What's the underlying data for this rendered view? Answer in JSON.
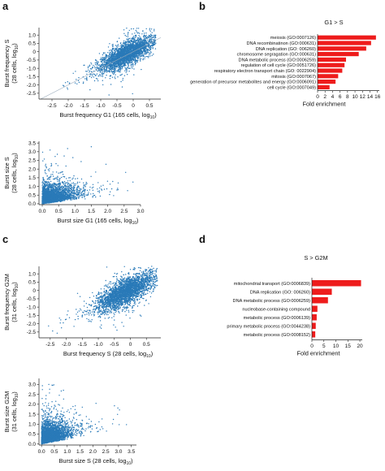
{
  "panel_labels": {
    "a": "a",
    "b": "b",
    "c": "c",
    "d": "d"
  },
  "chart_data": [
    {
      "id": "a1",
      "panel": "a",
      "type": "scatter",
      "color": "#2a7ab8",
      "title": "",
      "xlabel": "Burst frequency G1 (165 cells, log10)",
      "ylabel_line1": "Burst frequency S",
      "ylabel_line2": "(28 cells, log10)",
      "xlim": [
        -2.9,
        0.85
      ],
      "ylim": [
        -2.85,
        1.45
      ],
      "xticks": [
        "-2.5",
        "-2.0",
        "-1.5",
        "-1.0",
        "-0.5",
        "0",
        "0.5"
      ],
      "xtick_values": [
        -2.5,
        -2.0,
        -1.5,
        -1.0,
        -0.5,
        0,
        0.5
      ],
      "yticks": [
        "-2.5",
        "-2.0",
        "-1.5",
        "-1.0",
        "-0.5",
        "0",
        "0.5",
        "1.0"
      ],
      "ytick_values": [
        -2.5,
        -2.0,
        -1.5,
        -1.0,
        -0.5,
        0,
        0.5,
        1.0
      ],
      "diagonal": true,
      "points_description": "~3000 points, dense cloud along diagonal; approximate",
      "dist": {
        "kind": "corr",
        "n": 3000,
        "xmean": -0.2,
        "xsd": 0.38,
        "ymean": -0.15,
        "slope": 0.95,
        "noise": 0.32,
        "xmin": -2.6,
        "xmax": 0.7
      }
    },
    {
      "id": "a2",
      "panel": "a",
      "type": "scatter",
      "color": "#2a7ab8",
      "title": "",
      "xlabel": "Burst size G1 (165 cells, log10)",
      "ylabel_line1": "Burst size S",
      "ylabel_line2": "(28 cells, log10)",
      "xlim": [
        -0.1,
        3.0
      ],
      "ylim": [
        -0.05,
        3.6
      ],
      "xticks": [
        "0.0",
        "0.5",
        "1.0",
        "1.5",
        "2.0",
        "2.5",
        "3.0"
      ],
      "xtick_values": [
        0.0,
        0.5,
        1.0,
        1.5,
        2.0,
        2.5,
        3.0
      ],
      "yticks": [
        "0.0",
        "0.5",
        "1.0",
        "1.5",
        "2.0",
        "2.5",
        "3.0",
        "3.5"
      ],
      "ytick_values": [
        0.0,
        0.5,
        1.0,
        1.5,
        2.0,
        2.5,
        3.0,
        3.5
      ],
      "diagonal": false,
      "dist": {
        "kind": "pos",
        "n": 3000,
        "xscale": 0.45,
        "yscale": 0.42,
        "corr": 0.35,
        "xmax": 2.9,
        "ymax": 3.4
      }
    },
    {
      "id": "b",
      "panel": "b",
      "type": "bar",
      "orientation": "horizontal",
      "color": "#ee1c1c",
      "title": "G1 > S",
      "xlabel": "Fold enrichment",
      "xlim": [
        0,
        16.5
      ],
      "xticks": [
        "0",
        "2",
        "4",
        "6",
        "8",
        "10",
        "12",
        "14",
        "16"
      ],
      "xtick_values": [
        0,
        2,
        4,
        6,
        8,
        10,
        12,
        14,
        16
      ],
      "categories": [
        "meiosis (GO:0007126)",
        "DNA recombinatinon (GO:000631)",
        "DNA replication (GO: 006260)",
        "chromosome segragation (GO:000631)",
        "DNA metabolic process (GO:0006259)",
        "regulation of cell cycle (GO:0051726)",
        "respiratory electron transport chain (GO: 0022904)",
        "mitosis (GO:0007067)",
        "generation of precursor metabolites and energy (GO:0006091)",
        "cell cycle (GO:0007049)"
      ],
      "values": [
        15.6,
        14.3,
        13.0,
        11.0,
        7.6,
        7.2,
        6.6,
        5.5,
        4.8,
        3.2
      ]
    },
    {
      "id": "c1",
      "panel": "c",
      "type": "scatter",
      "color": "#2a7ab8",
      "title": "",
      "xlabel": "Burst frequency S (28 cells, log10)",
      "ylabel_line1": "Burst frequency G2M",
      "ylabel_line2": "(31 cells, log10)",
      "xlim": [
        -2.85,
        0.95
      ],
      "ylim": [
        -2.85,
        1.45
      ],
      "xticks": [
        "-2.5",
        "-2.0",
        "-1.5",
        "-1.0",
        "-0.5",
        "0",
        "0.5"
      ],
      "xtick_values": [
        -2.5,
        -2.0,
        -1.5,
        -1.0,
        -0.5,
        0,
        0.5
      ],
      "yticks": [
        "-2.5",
        "-2.0",
        "-1.5",
        "-1.0",
        "-0.5",
        "0",
        "0.5",
        "1.0"
      ],
      "ytick_values": [
        -2.5,
        -2.0,
        -1.5,
        -1.0,
        -0.5,
        0,
        0.5,
        1.0
      ],
      "diagonal": false,
      "dist": {
        "kind": "corr",
        "n": 3000,
        "xmean": -0.15,
        "xsd": 0.42,
        "ymean": -0.1,
        "slope": 0.9,
        "noise": 0.38,
        "xmin": -2.6,
        "xmax": 0.85
      }
    },
    {
      "id": "c2",
      "panel": "c",
      "type": "scatter",
      "color": "#2a7ab8",
      "title": "",
      "xlabel": "Burst size S (28 cells, log10)",
      "ylabel_line1": "Burst size G2M",
      "ylabel_line2": "(31 cells, log10)",
      "xlim": [
        -0.1,
        3.7
      ],
      "ylim": [
        -0.05,
        3.3
      ],
      "xticks": [
        "0.0",
        "0.5",
        "1.0",
        "1.5",
        "2.0",
        "2.5",
        "3.0",
        "3.5"
      ],
      "xtick_values": [
        0.0,
        0.5,
        1.0,
        1.5,
        2.0,
        2.5,
        3.0,
        3.5
      ],
      "yticks": [
        "0.0",
        "0.5",
        "1.0",
        "1.5",
        "2.0",
        "2.5",
        "3.0"
      ],
      "ytick_values": [
        0.0,
        0.5,
        1.0,
        1.5,
        2.0,
        2.5,
        3.0
      ],
      "diagonal": false,
      "dist": {
        "kind": "pos",
        "n": 3000,
        "xscale": 0.5,
        "yscale": 0.42,
        "corr": 0.35,
        "xmax": 3.5,
        "ymax": 3.1
      }
    },
    {
      "id": "d",
      "panel": "d",
      "type": "bar",
      "orientation": "horizontal",
      "color": "#ee1c1c",
      "title": "S > G2M",
      "xlabel": "Fold enrichment",
      "xlim": [
        0,
        21
      ],
      "xticks": [
        "0",
        "5",
        "10",
        "15",
        "20"
      ],
      "xtick_values": [
        0,
        5,
        10,
        15,
        20
      ],
      "categories": [
        "mitochondrial transport (GO:0006839)",
        "DNA replication (GO: 006260)",
        "DNA metabolic process (GO:0006259)",
        "nucleobase-containing compound",
        "metabolic process (GO:0006139)",
        "primary metabolic process (GO:0044238)",
        "metabolic process (GO:0008152)"
      ],
      "values": [
        20.5,
        8.3,
        6.7,
        2.3,
        2.0,
        1.6,
        1.4
      ]
    }
  ]
}
